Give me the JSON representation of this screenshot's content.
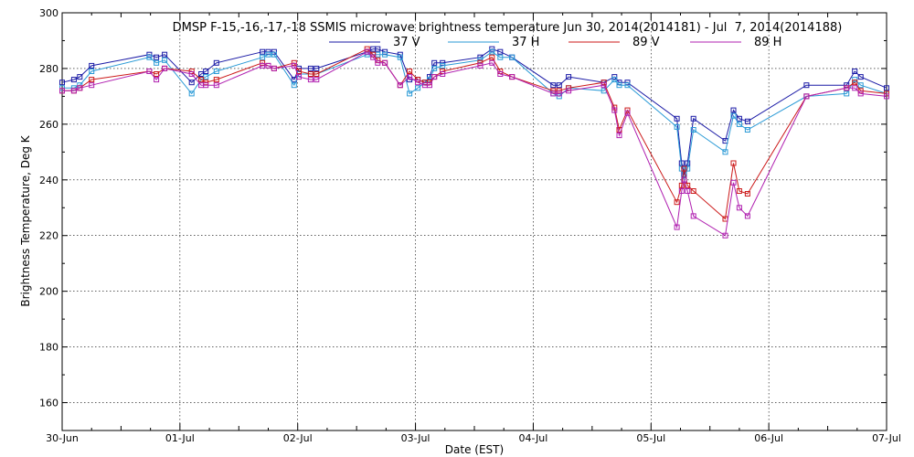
{
  "chart_data": {
    "type": "line",
    "title": "DMSP F-15,-16,-17,-18 SSMIS microwave brightness temperature Jun 30, 2014(2014181) - Jul  7, 2014(2014188)",
    "xlabel": "Date (EST)",
    "ylabel": "Brightness Temperature, Deg K",
    "xlim": [
      0,
      7
    ],
    "ylim": [
      150,
      300
    ],
    "x_ticks": [
      {
        "value": 0,
        "label": "30-Jun"
      },
      {
        "value": 1,
        "label": "01-Jul"
      },
      {
        "value": 2,
        "label": "02-Jul"
      },
      {
        "value": 3,
        "label": "03-Jul"
      },
      {
        "value": 4,
        "label": "04-Jul"
      },
      {
        "value": 5,
        "label": "05-Jul"
      },
      {
        "value": 6,
        "label": "06-Jul"
      },
      {
        "value": 7,
        "label": "07-Jul"
      }
    ],
    "y_ticks": [
      {
        "value": 160,
        "label": "160"
      },
      {
        "value": 180,
        "label": "180"
      },
      {
        "value": 200,
        "label": "200"
      },
      {
        "value": 220,
        "label": "220"
      },
      {
        "value": 240,
        "label": "240"
      },
      {
        "value": 260,
        "label": "260"
      },
      {
        "value": 280,
        "label": "280"
      },
      {
        "value": 300,
        "label": "300"
      }
    ],
    "grid": true,
    "legend_position": "top-center",
    "series": [
      {
        "name": "37 V",
        "color": "#1a1aa6",
        "x": [
          0.0,
          0.1,
          0.15,
          0.25,
          0.74,
          0.8,
          0.87,
          1.1,
          1.18,
          1.22,
          1.31,
          1.7,
          1.75,
          1.8,
          1.97,
          2.01,
          2.11,
          2.16,
          2.59,
          2.64,
          2.68,
          2.74,
          2.87,
          2.95,
          3.02,
          3.08,
          3.12,
          3.16,
          3.23,
          3.55,
          3.65,
          3.72,
          3.82,
          4.17,
          4.22,
          4.3,
          4.6,
          4.69,
          4.73,
          4.8,
          5.22,
          5.26,
          5.28,
          5.31,
          5.36,
          5.63,
          5.7,
          5.75,
          5.82,
          6.32,
          6.66,
          6.73,
          6.78,
          7.0
        ],
        "y": [
          275,
          276,
          277,
          281,
          285,
          284,
          285,
          275,
          278,
          279,
          282,
          286,
          286,
          286,
          276,
          280,
          280,
          280,
          286,
          287,
          287,
          286,
          285,
          276,
          276,
          275,
          277,
          282,
          282,
          284,
          287,
          286,
          284,
          274,
          274,
          277,
          275,
          277,
          275,
          275,
          262,
          246,
          242,
          246,
          262,
          254,
          265,
          262,
          261,
          274,
          274,
          279,
          277,
          273
        ]
      },
      {
        "name": "37 H",
        "color": "#2a9ad6",
        "x": [
          0.0,
          0.1,
          0.15,
          0.25,
          0.74,
          0.8,
          0.87,
          1.1,
          1.18,
          1.22,
          1.31,
          1.7,
          1.75,
          1.8,
          1.97,
          2.01,
          2.11,
          2.16,
          2.59,
          2.64,
          2.68,
          2.74,
          2.87,
          2.95,
          3.02,
          3.08,
          3.12,
          3.16,
          3.23,
          3.55,
          3.65,
          3.72,
          3.82,
          4.17,
          4.22,
          4.3,
          4.6,
          4.69,
          4.73,
          4.8,
          5.22,
          5.26,
          5.28,
          5.31,
          5.36,
          5.63,
          5.7,
          5.75,
          5.82,
          6.32,
          6.66,
          6.73,
          6.78,
          7.0
        ],
        "y": [
          273,
          273,
          274,
          279,
          284,
          282,
          283,
          271,
          276,
          277,
          279,
          284,
          285,
          285,
          274,
          278,
          278,
          278,
          285,
          285,
          285,
          285,
          284,
          271,
          273,
          275,
          276,
          280,
          281,
          283,
          286,
          284,
          284,
          271,
          270,
          273,
          272,
          276,
          274,
          274,
          259,
          244,
          240,
          244,
          258,
          250,
          263,
          260,
          258,
          270,
          271,
          276,
          274,
          271
        ]
      },
      {
        "name": "89 V",
        "color": "#cc1a1a",
        "x": [
          0.0,
          0.1,
          0.15,
          0.25,
          0.74,
          0.8,
          0.87,
          1.1,
          1.18,
          1.22,
          1.31,
          1.7,
          1.75,
          1.8,
          1.97,
          2.01,
          2.11,
          2.16,
          2.59,
          2.64,
          2.68,
          2.74,
          2.87,
          2.95,
          3.02,
          3.08,
          3.12,
          3.16,
          3.23,
          3.55,
          3.65,
          3.72,
          3.82,
          4.17,
          4.22,
          4.3,
          4.6,
          4.69,
          4.73,
          4.8,
          5.22,
          5.26,
          5.28,
          5.31,
          5.36,
          5.63,
          5.7,
          5.75,
          5.82,
          6.32,
          6.66,
          6.73,
          6.78,
          7.0
        ],
        "y": [
          272,
          272,
          273,
          276,
          279,
          278,
          280,
          279,
          276,
          275,
          276,
          282,
          281,
          280,
          282,
          279,
          278,
          278,
          287,
          285,
          283,
          282,
          274,
          279,
          276,
          275,
          275,
          277,
          279,
          282,
          284,
          279,
          277,
          272,
          272,
          273,
          275,
          266,
          258,
          265,
          232,
          238,
          244,
          238,
          236,
          226,
          246,
          236,
          235,
          270,
          273,
          275,
          272,
          271
        ]
      },
      {
        "name": "89 H",
        "color": "#b020b0",
        "x": [
          0.0,
          0.1,
          0.15,
          0.25,
          0.74,
          0.8,
          0.87,
          1.1,
          1.18,
          1.22,
          1.31,
          1.7,
          1.75,
          1.8,
          1.97,
          2.01,
          2.11,
          2.16,
          2.59,
          2.64,
          2.68,
          2.74,
          2.87,
          2.95,
          3.02,
          3.08,
          3.12,
          3.16,
          3.23,
          3.55,
          3.65,
          3.72,
          3.82,
          4.17,
          4.22,
          4.3,
          4.6,
          4.69,
          4.73,
          4.8,
          5.22,
          5.26,
          5.28,
          5.31,
          5.36,
          5.63,
          5.7,
          5.75,
          5.82,
          6.32,
          6.66,
          6.73,
          6.78,
          7.0
        ],
        "y": [
          272,
          272,
          273,
          274,
          279,
          276,
          280,
          278,
          274,
          274,
          274,
          281,
          281,
          280,
          281,
          277,
          276,
          276,
          286,
          284,
          282,
          282,
          274,
          277,
          275,
          274,
          274,
          277,
          278,
          281,
          282,
          278,
          277,
          271,
          271,
          272,
          274,
          265,
          256,
          264,
          223,
          236,
          240,
          236,
          227,
          220,
          239,
          230,
          227,
          270,
          273,
          273,
          271,
          270
        ]
      }
    ]
  }
}
